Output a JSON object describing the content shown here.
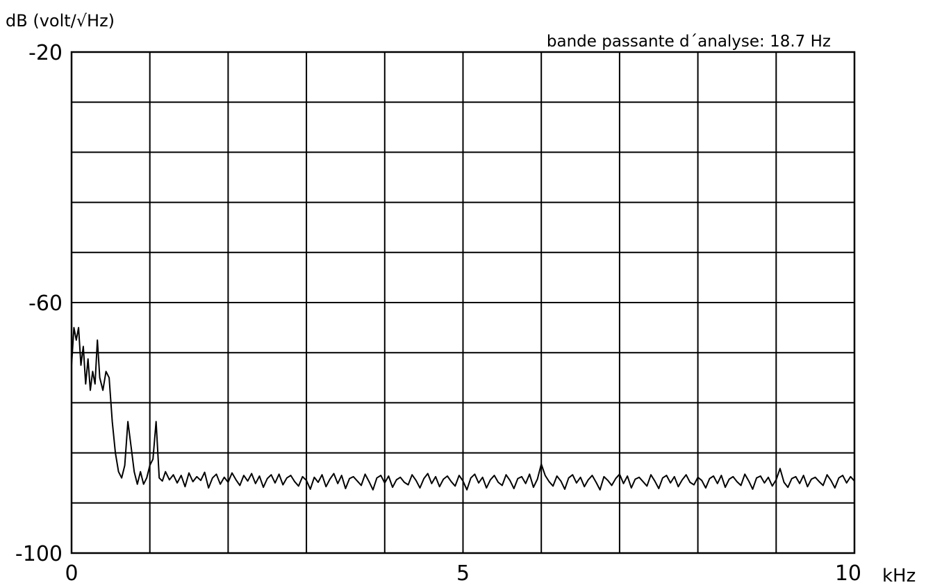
{
  "chart_data": {
    "type": "line",
    "ylabel": "dB (volt/√Hz)",
    "annotation": "bande passante d´analyse: 18.7 Hz",
    "x_unit": "kHz",
    "xlim": [
      0,
      10
    ],
    "ylim": [
      -100,
      -20
    ],
    "x_tick_labels": [
      {
        "value": 0,
        "label": "0"
      },
      {
        "value": 5,
        "label": "5"
      },
      {
        "value": 10,
        "label": "10"
      }
    ],
    "y_tick_labels": [
      {
        "value": -20,
        "label": "-20"
      },
      {
        "value": -60,
        "label": "-60"
      },
      {
        "value": -100,
        "label": "-100"
      }
    ],
    "grid": true,
    "x_grid_step": 1,
    "y_grid_step": 8,
    "series": [
      {
        "points": [
          [
            0.0,
            -70
          ],
          [
            0.03,
            -64
          ],
          [
            0.06,
            -66
          ],
          [
            0.09,
            -64
          ],
          [
            0.12,
            -70
          ],
          [
            0.15,
            -67
          ],
          [
            0.18,
            -73
          ],
          [
            0.21,
            -69
          ],
          [
            0.24,
            -74
          ],
          [
            0.27,
            -71
          ],
          [
            0.3,
            -73
          ],
          [
            0.33,
            -66
          ],
          [
            0.36,
            -72
          ],
          [
            0.4,
            -74
          ],
          [
            0.44,
            -71
          ],
          [
            0.48,
            -72
          ],
          [
            0.52,
            -79
          ],
          [
            0.56,
            -84
          ],
          [
            0.6,
            -87
          ],
          [
            0.64,
            -88
          ],
          [
            0.68,
            -86
          ],
          [
            0.72,
            -79
          ],
          [
            0.76,
            -83
          ],
          [
            0.8,
            -87
          ],
          [
            0.84,
            -89
          ],
          [
            0.88,
            -87
          ],
          [
            0.92,
            -89
          ],
          [
            0.96,
            -88
          ],
          [
            1.0,
            -86
          ],
          [
            1.04,
            -85
          ],
          [
            1.08,
            -79
          ],
          [
            1.12,
            -88
          ],
          [
            1.16,
            -88.5
          ],
          [
            1.2,
            -87
          ],
          [
            1.25,
            -88.3
          ],
          [
            1.3,
            -87.5
          ],
          [
            1.35,
            -88.8
          ],
          [
            1.4,
            -87.6
          ],
          [
            1.45,
            -89.4
          ],
          [
            1.5,
            -87.2
          ],
          [
            1.55,
            -88.6
          ],
          [
            1.6,
            -87.8
          ],
          [
            1.65,
            -88.4
          ],
          [
            1.7,
            -87.1
          ],
          [
            1.75,
            -89.6
          ],
          [
            1.8,
            -88.0
          ],
          [
            1.85,
            -87.4
          ],
          [
            1.9,
            -89.0
          ],
          [
            1.95,
            -87.9
          ],
          [
            2.0,
            -88.7
          ],
          [
            2.05,
            -87.2
          ],
          [
            2.1,
            -88.3
          ],
          [
            2.15,
            -89.2
          ],
          [
            2.2,
            -87.6
          ],
          [
            2.25,
            -88.5
          ],
          [
            2.3,
            -87.3
          ],
          [
            2.35,
            -88.9
          ],
          [
            2.4,
            -87.7
          ],
          [
            2.45,
            -89.5
          ],
          [
            2.5,
            -88.1
          ],
          [
            2.55,
            -87.5
          ],
          [
            2.6,
            -88.8
          ],
          [
            2.65,
            -87.4
          ],
          [
            2.7,
            -89.1
          ],
          [
            2.75,
            -88.0
          ],
          [
            2.8,
            -87.6
          ],
          [
            2.85,
            -88.6
          ],
          [
            2.9,
            -89.3
          ],
          [
            2.95,
            -87.8
          ],
          [
            3.0,
            -88.4
          ],
          [
            3.05,
            -89.8
          ],
          [
            3.1,
            -87.9
          ],
          [
            3.15,
            -88.7
          ],
          [
            3.2,
            -87.5
          ],
          [
            3.25,
            -89.4
          ],
          [
            3.3,
            -88.2
          ],
          [
            3.35,
            -87.3
          ],
          [
            3.4,
            -88.9
          ],
          [
            3.45,
            -87.6
          ],
          [
            3.5,
            -89.7
          ],
          [
            3.55,
            -88.1
          ],
          [
            3.6,
            -87.8
          ],
          [
            3.65,
            -88.5
          ],
          [
            3.7,
            -89.2
          ],
          [
            3.75,
            -87.4
          ],
          [
            3.8,
            -88.6
          ],
          [
            3.85,
            -89.9
          ],
          [
            3.9,
            -88.0
          ],
          [
            3.95,
            -87.6
          ],
          [
            4.0,
            -88.8
          ],
          [
            4.05,
            -87.7
          ],
          [
            4.1,
            -89.5
          ],
          [
            4.15,
            -88.3
          ],
          [
            4.2,
            -87.9
          ],
          [
            4.25,
            -88.7
          ],
          [
            4.3,
            -89.1
          ],
          [
            4.35,
            -87.5
          ],
          [
            4.4,
            -88.4
          ],
          [
            4.45,
            -89.6
          ],
          [
            4.5,
            -88.1
          ],
          [
            4.55,
            -87.3
          ],
          [
            4.6,
            -88.9
          ],
          [
            4.65,
            -87.8
          ],
          [
            4.7,
            -89.4
          ],
          [
            4.75,
            -88.2
          ],
          [
            4.8,
            -87.7
          ],
          [
            4.85,
            -88.6
          ],
          [
            4.9,
            -89.3
          ],
          [
            4.95,
            -87.6
          ],
          [
            5.0,
            -88.5
          ],
          [
            5.05,
            -89.9
          ],
          [
            5.1,
            -88.0
          ],
          [
            5.15,
            -87.4
          ],
          [
            5.2,
            -88.8
          ],
          [
            5.25,
            -87.9
          ],
          [
            5.3,
            -89.6
          ],
          [
            5.35,
            -88.3
          ],
          [
            5.4,
            -87.6
          ],
          [
            5.45,
            -88.7
          ],
          [
            5.5,
            -89.2
          ],
          [
            5.55,
            -87.5
          ],
          [
            5.6,
            -88.4
          ],
          [
            5.65,
            -89.7
          ],
          [
            5.7,
            -88.1
          ],
          [
            5.75,
            -87.8
          ],
          [
            5.8,
            -88.9
          ],
          [
            5.85,
            -87.4
          ],
          [
            5.9,
            -89.5
          ],
          [
            5.95,
            -88.2
          ],
          [
            6.0,
            -85.8
          ],
          [
            6.05,
            -87.6
          ],
          [
            6.1,
            -88.6
          ],
          [
            6.15,
            -89.3
          ],
          [
            6.2,
            -87.7
          ],
          [
            6.25,
            -88.5
          ],
          [
            6.3,
            -89.8
          ],
          [
            6.35,
            -88.0
          ],
          [
            6.4,
            -87.5
          ],
          [
            6.45,
            -88.8
          ],
          [
            6.5,
            -87.9
          ],
          [
            6.55,
            -89.4
          ],
          [
            6.6,
            -88.3
          ],
          [
            6.65,
            -87.6
          ],
          [
            6.7,
            -88.7
          ],
          [
            6.75,
            -89.9
          ],
          [
            6.8,
            -87.8
          ],
          [
            6.85,
            -88.4
          ],
          [
            6.9,
            -89.2
          ],
          [
            6.95,
            -88.1
          ],
          [
            7.0,
            -87.4
          ],
          [
            7.05,
            -88.9
          ],
          [
            7.1,
            -87.7
          ],
          [
            7.15,
            -89.6
          ],
          [
            7.2,
            -88.2
          ],
          [
            7.25,
            -87.9
          ],
          [
            7.3,
            -88.6
          ],
          [
            7.35,
            -89.3
          ],
          [
            7.4,
            -87.5
          ],
          [
            7.45,
            -88.5
          ],
          [
            7.5,
            -89.7
          ],
          [
            7.55,
            -88.0
          ],
          [
            7.6,
            -87.6
          ],
          [
            7.65,
            -88.8
          ],
          [
            7.7,
            -87.8
          ],
          [
            7.75,
            -89.4
          ],
          [
            7.8,
            -88.3
          ],
          [
            7.85,
            -87.5
          ],
          [
            7.9,
            -88.7
          ],
          [
            7.95,
            -89.1
          ],
          [
            8.0,
            -87.9
          ],
          [
            8.05,
            -88.4
          ],
          [
            8.1,
            -89.6
          ],
          [
            8.15,
            -88.1
          ],
          [
            8.2,
            -87.7
          ],
          [
            8.25,
            -88.9
          ],
          [
            8.3,
            -87.6
          ],
          [
            8.35,
            -89.5
          ],
          [
            8.4,
            -88.2
          ],
          [
            8.45,
            -87.8
          ],
          [
            8.5,
            -88.6
          ],
          [
            8.55,
            -89.2
          ],
          [
            8.6,
            -87.4
          ],
          [
            8.65,
            -88.5
          ],
          [
            8.7,
            -89.8
          ],
          [
            8.75,
            -88.0
          ],
          [
            8.8,
            -87.7
          ],
          [
            8.85,
            -88.8
          ],
          [
            8.9,
            -87.9
          ],
          [
            8.95,
            -89.3
          ],
          [
            9.0,
            -88.3
          ],
          [
            9.05,
            -86.5
          ],
          [
            9.1,
            -88.7
          ],
          [
            9.15,
            -89.5
          ],
          [
            9.2,
            -88.1
          ],
          [
            9.25,
            -87.8
          ],
          [
            9.3,
            -88.9
          ],
          [
            9.35,
            -87.6
          ],
          [
            9.4,
            -89.4
          ],
          [
            9.45,
            -88.2
          ],
          [
            9.5,
            -87.9
          ],
          [
            9.55,
            -88.6
          ],
          [
            9.6,
            -89.2
          ],
          [
            9.65,
            -87.5
          ],
          [
            9.7,
            -88.4
          ],
          [
            9.75,
            -89.6
          ],
          [
            9.8,
            -88.0
          ],
          [
            9.85,
            -87.6
          ],
          [
            9.9,
            -88.8
          ],
          [
            9.95,
            -87.8
          ],
          [
            10.0,
            -88.5
          ]
        ]
      }
    ]
  }
}
